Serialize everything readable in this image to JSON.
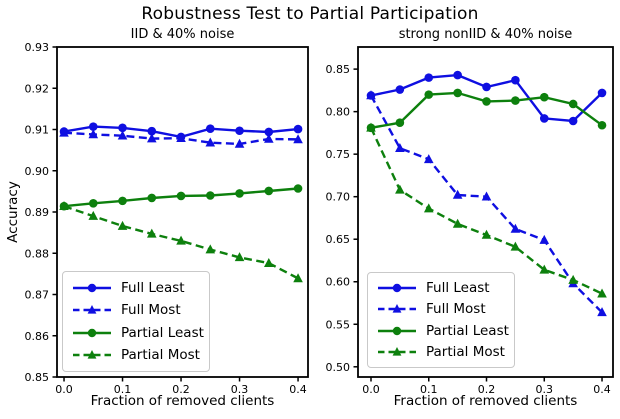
{
  "figure": {
    "title": "Robustness Test to Partial Participation",
    "xlabel": "Fraction of removed clients",
    "ylabel": "Accuracy"
  },
  "colors": {
    "full": "#0f0fe1",
    "partial": "#0d800d",
    "axis": "#000000",
    "legend_border": "#c9c9c9"
  },
  "chart_data": [
    {
      "type": "line",
      "title": "IID & 40% noise",
      "xlabel": "Fraction of removed clients",
      "ylabel": "Accuracy",
      "x": [
        0.0,
        0.05,
        0.1,
        0.15,
        0.2,
        0.25,
        0.3,
        0.35,
        0.4
      ],
      "xlim": [
        -0.012,
        0.417
      ],
      "ylim": [
        0.85,
        0.93
      ],
      "xticks": [
        "0.0",
        "0.1",
        "0.2",
        "0.3",
        "0.4"
      ],
      "yticks": [
        "0.85",
        "0.86",
        "0.87",
        "0.88",
        "0.89",
        "0.90",
        "0.91",
        "0.92",
        "0.93"
      ],
      "grid": false,
      "legend_position": "lower left",
      "series": [
        {
          "name": "Full Least",
          "color": "#0f0fe1",
          "line": "solid",
          "marker": "circle",
          "values": [
            0.9095,
            0.9107,
            0.9104,
            0.9096,
            0.9082,
            0.9102,
            0.9097,
            0.9094,
            0.9101
          ]
        },
        {
          "name": "Full Most",
          "color": "#0f0fe1",
          "line": "dashed",
          "marker": "triangle",
          "values": [
            0.9092,
            0.9088,
            0.9085,
            0.9078,
            0.9079,
            0.9068,
            0.9065,
            0.9077,
            0.9076
          ]
        },
        {
          "name": "Partial Least",
          "color": "#0d800d",
          "line": "solid",
          "marker": "circle",
          "values": [
            0.8914,
            0.8921,
            0.8927,
            0.8934,
            0.8939,
            0.894,
            0.8945,
            0.8951,
            0.8957
          ]
        },
        {
          "name": "Partial Most",
          "color": "#0d800d",
          "line": "dashed",
          "marker": "triangle",
          "values": [
            0.8914,
            0.889,
            0.8866,
            0.8847,
            0.883,
            0.8809,
            0.879,
            0.8776,
            0.8739
          ]
        }
      ]
    },
    {
      "type": "line",
      "title": "strong nonIID & 40% noise",
      "xlabel": "Fraction of removed clients",
      "ylabel": "",
      "x": [
        0.0,
        0.05,
        0.1,
        0.15,
        0.2,
        0.25,
        0.3,
        0.35,
        0.4
      ],
      "xlim": [
        -0.0225,
        0.419
      ],
      "ylim": [
        0.488,
        0.876
      ],
      "xticks": [
        "0.0",
        "0.1",
        "0.2",
        "0.3",
        "0.4"
      ],
      "yticks": [
        "0.50",
        "0.55",
        "0.60",
        "0.65",
        "0.70",
        "0.75",
        "0.80",
        "0.85"
      ],
      "grid": false,
      "legend_position": "lower left",
      "series": [
        {
          "name": "Full Least",
          "color": "#0f0fe1",
          "line": "solid",
          "marker": "circle",
          "values": [
            0.819,
            0.826,
            0.84,
            0.843,
            0.829,
            0.837,
            0.792,
            0.789,
            0.822
          ]
        },
        {
          "name": "Full Most",
          "color": "#0f0fe1",
          "line": "dashed",
          "marker": "triangle",
          "values": [
            0.819,
            0.757,
            0.744,
            0.702,
            0.7,
            0.662,
            0.649,
            0.598,
            0.564
          ]
        },
        {
          "name": "Partial Least",
          "color": "#0d800d",
          "line": "solid",
          "marker": "circle",
          "values": [
            0.781,
            0.787,
            0.82,
            0.822,
            0.812,
            0.813,
            0.817,
            0.809,
            0.784
          ]
        },
        {
          "name": "Partial Most",
          "color": "#0d800d",
          "line": "dashed",
          "marker": "triangle",
          "values": [
            0.781,
            0.708,
            0.686,
            0.668,
            0.655,
            0.641,
            0.614,
            0.602,
            0.586
          ]
        }
      ]
    }
  ]
}
